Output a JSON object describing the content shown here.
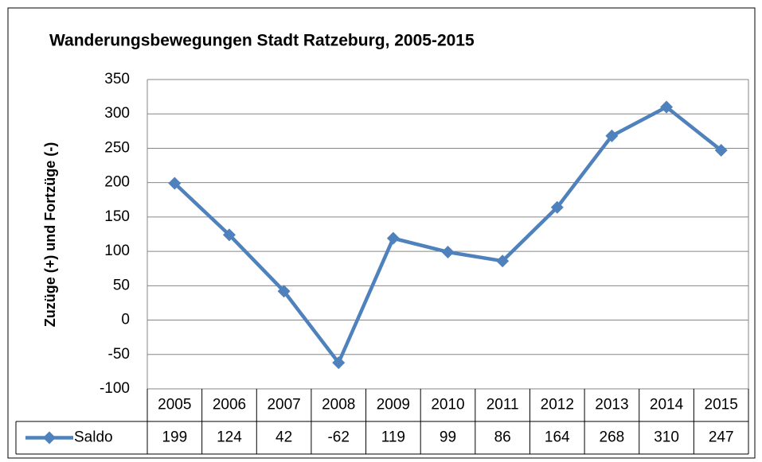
{
  "chart_data": {
    "type": "line",
    "title": "Wanderungsbewegungen Stadt Ratzeburg, 2005-2015",
    "y_label": "Zuzüge (+) und Fortzüge (-)",
    "categories": [
      "2005",
      "2006",
      "2007",
      "2008",
      "2009",
      "2010",
      "2011",
      "2012",
      "2013",
      "2014",
      "2015"
    ],
    "series": [
      {
        "name": "Saldo",
        "color": "#4f81bd",
        "values": [
          199,
          124,
          42,
          -62,
          119,
          99,
          86,
          164,
          268,
          310,
          247
        ]
      }
    ],
    "ylim": [
      -100,
      350
    ],
    "yticks": [
      -100,
      -50,
      0,
      50,
      100,
      150,
      200,
      250,
      300,
      350
    ],
    "grid": true,
    "data_table": true
  }
}
